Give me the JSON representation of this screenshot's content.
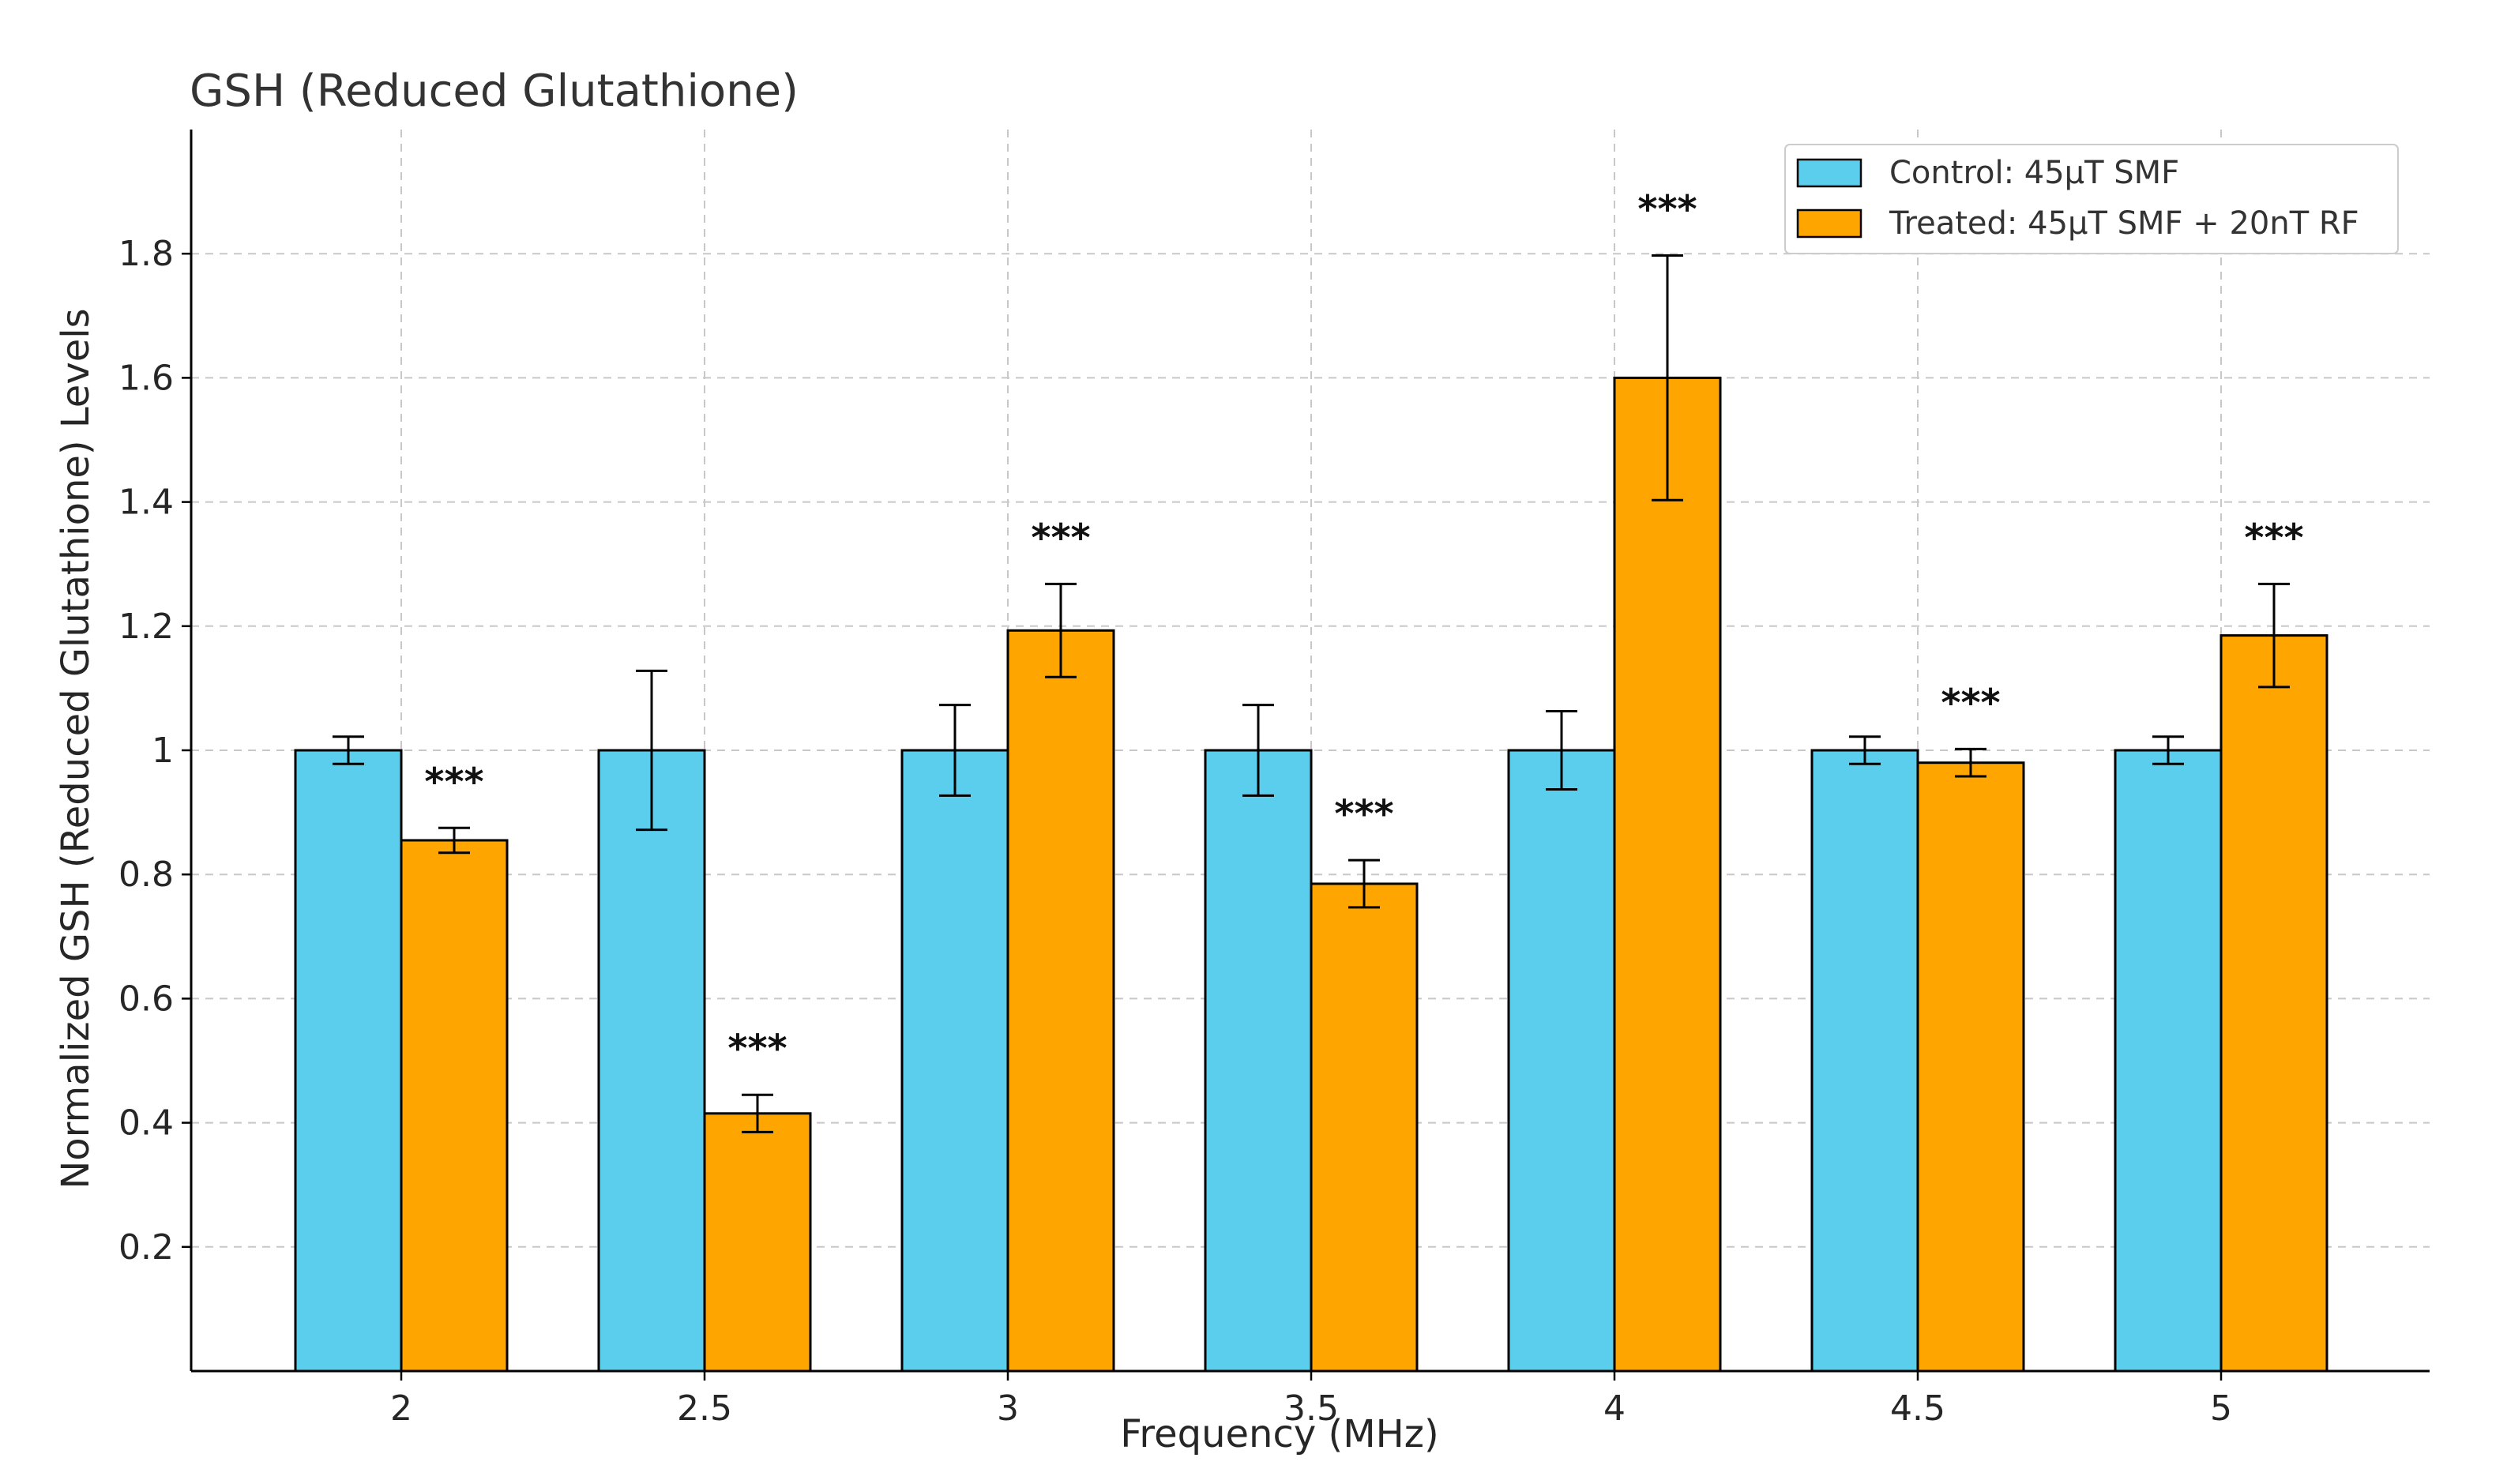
{
  "colors": {
    "control": "#5BCEED",
    "treated": "#FFA500",
    "grid": "#c8c8c8",
    "axis": "#000000"
  },
  "chart_data": {
    "type": "bar",
    "title": "GSH (Reduced Glutathione)",
    "xlabel": "Frequency (MHz)",
    "ylabel": "Normalized GSH (Reduced Glutathione) Levels",
    "ylim": [
      0,
      2.0
    ],
    "yticks": [
      0.2,
      0.4,
      0.6,
      0.8,
      1,
      1.2,
      1.4,
      1.6,
      1.8
    ],
    "ytick_labels": [
      "0.2",
      "0.4",
      "0.6",
      "0.8",
      "1",
      "1.2",
      "1.4",
      "1.6",
      "1.8"
    ],
    "categories": [
      "2",
      "2.5",
      "3",
      "3.5",
      "4",
      "4.5",
      "5"
    ],
    "grid": true,
    "legend_position": "top-right",
    "series": [
      {
        "name": "Control: 45μT SMF",
        "color_key": "control",
        "values": [
          1,
          1,
          1,
          1,
          1,
          1,
          1
        ],
        "errors": [
          0.022,
          0.128,
          0.073,
          0.073,
          0.063,
          0.022,
          0.022
        ]
      },
      {
        "name": "Treated: 45μT SMF + 20nT RF",
        "color_key": "treated",
        "values": [
          0.855,
          0.415,
          1.193,
          0.785,
          1.6,
          0.98,
          1.185
        ],
        "errors": [
          0.02,
          0.03,
          0.075,
          0.038,
          0.197,
          0.022,
          0.083
        ],
        "annotations": [
          "***",
          "***",
          "***",
          "***",
          "***",
          "***",
          "***"
        ]
      }
    ]
  }
}
